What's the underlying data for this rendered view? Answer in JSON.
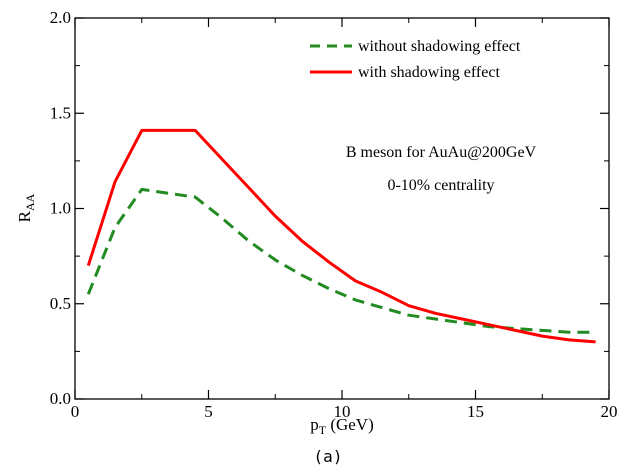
{
  "chart_data": {
    "type": "line",
    "xlabel_main": "p",
    "xlabel_sub": "T",
    "xlabel_unit": " (GeV)",
    "ylabel_main": "R",
    "ylabel_sub": "AA",
    "xlim": [
      0,
      20
    ],
    "ylim": [
      0,
      2.0
    ],
    "xticks": [
      0,
      5,
      10,
      15,
      20
    ],
    "xtick_labels": [
      "0",
      "5",
      "10",
      "15",
      "20"
    ],
    "yticks": [
      0.0,
      0.5,
      1.0,
      1.5,
      2.0
    ],
    "ytick_labels": [
      "0.0",
      "0.5",
      "1.0",
      "1.5",
      "2.0"
    ],
    "grid": false,
    "legend_position": "top-right",
    "series": [
      {
        "name": "without shadowing effect",
        "color": "#228B22",
        "style": "dashed",
        "x": [
          0.5,
          1.5,
          2.5,
          3.5,
          4.5,
          5.5,
          6.5,
          7.5,
          8.5,
          9.5,
          10.5,
          11.5,
          12.5,
          13.5,
          14.5,
          15.5,
          16.5,
          17.5,
          18.5,
          19.5
        ],
        "y": [
          0.55,
          0.9,
          1.1,
          1.08,
          1.06,
          0.95,
          0.83,
          0.73,
          0.65,
          0.58,
          0.52,
          0.48,
          0.44,
          0.42,
          0.4,
          0.38,
          0.37,
          0.36,
          0.35,
          0.35
        ]
      },
      {
        "name": "with shadowing effect",
        "color": "#ff0000",
        "style": "solid",
        "x": [
          0.5,
          1.5,
          2.5,
          3.5,
          4.5,
          5.5,
          6.5,
          7.5,
          8.5,
          9.5,
          10.5,
          11.5,
          12.5,
          13.5,
          14.5,
          15.5,
          16.5,
          17.5,
          18.5,
          19.5
        ],
        "y": [
          0.7,
          1.14,
          1.41,
          1.41,
          1.41,
          1.26,
          1.11,
          0.96,
          0.83,
          0.72,
          0.62,
          0.56,
          0.49,
          0.45,
          0.42,
          0.39,
          0.36,
          0.33,
          0.31,
          0.3
        ]
      }
    ],
    "annotations": [
      "B meson for AuAu@200GeV",
      "0-10% centrality"
    ]
  },
  "caption": "(a)"
}
